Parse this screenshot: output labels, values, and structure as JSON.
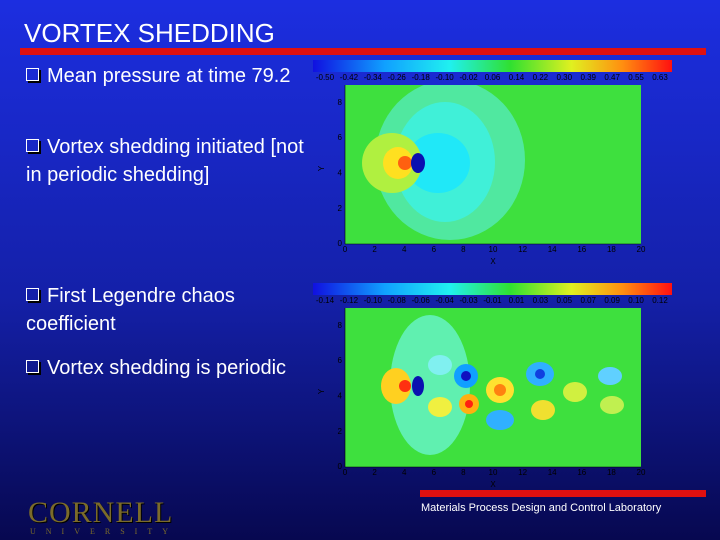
{
  "header": {
    "title": "VORTEX SHEDDING"
  },
  "bullets": [
    "Mean pressure at time 79.2",
    "Vortex shedding initiated [not in periodic shedding]",
    "First Legendre chaos coefficient",
    "Vortex shedding is periodic"
  ],
  "plots": [
    {
      "legend_labels": [
        "-0.50",
        "-0.42",
        "-0.34",
        "-0.26",
        "-0.18",
        "-0.10",
        "-0.02",
        "0.06",
        "0.14",
        "0.22",
        "0.30",
        "0.39",
        "0.47",
        "0.55",
        "0.63"
      ],
      "x_ticks": [
        "0",
        "2",
        "4",
        "6",
        "8",
        "10",
        "12",
        "14",
        "16",
        "18",
        "20"
      ],
      "y_ticks": [
        "0",
        "2",
        "4",
        "6",
        "8"
      ],
      "x_label": "X",
      "y_label": "Y"
    },
    {
      "legend_labels": [
        "-0.14",
        "-0.12",
        "-0.10",
        "-0.08",
        "-0.06",
        "-0.04",
        "-0.03",
        "-0.01",
        "0.01",
        "0.03",
        "0.05",
        "0.07",
        "0.09",
        "0.10",
        "0.12"
      ],
      "x_ticks": [
        "0",
        "2",
        "4",
        "6",
        "8",
        "10",
        "12",
        "14",
        "16",
        "18",
        "20"
      ],
      "y_ticks": [
        "0",
        "2",
        "4",
        "6",
        "8"
      ],
      "x_label": "X",
      "y_label": "Y"
    }
  ],
  "footer": {
    "logo": "CORNELL",
    "logo_sub": "UNIVERSITY",
    "lab": "Materials Process Design and Control Laboratory"
  }
}
